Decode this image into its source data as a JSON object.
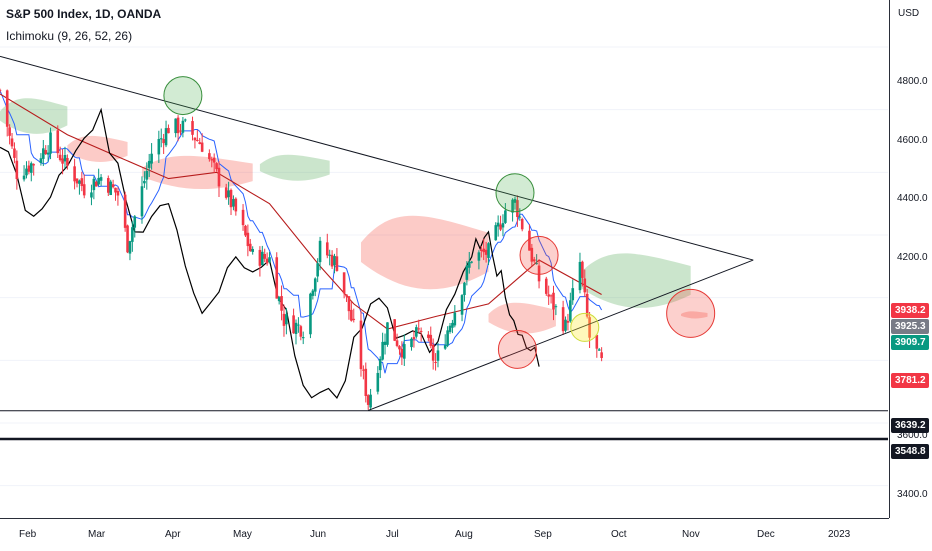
{
  "header": {
    "title": "S&P 500 Index, 1D, OANDA",
    "indicator": "Ichimoku (9, 26, 52, 26)"
  },
  "price_axis": {
    "currency": "USD",
    "ticks": [
      "4800.0",
      "4600.0",
      "4400.0",
      "4200.0",
      "3600.0",
      "3400.0"
    ],
    "labels": [
      {
        "text": "3938.2",
        "color": "#f23645"
      },
      {
        "text": "3925.3",
        "color": "#787b86"
      },
      {
        "text": "3909.7",
        "color": "#089981"
      },
      {
        "text": "3781.2",
        "color": "#f23645"
      },
      {
        "text": "3639.2",
        "color": "#131722"
      },
      {
        "text": "3548.8",
        "color": "#131722"
      }
    ]
  },
  "time_axis": {
    "ticks": [
      "Feb",
      "Mar",
      "Apr",
      "May",
      "Jun",
      "Jul",
      "Aug",
      "Sep",
      "Oct",
      "Nov",
      "Dec",
      "2023"
    ]
  },
  "chart_data": {
    "type": "candlestick",
    "symbol": "S&P 500 Index",
    "interval": "1D",
    "source": "OANDA",
    "y_range": [
      3300,
      4950
    ],
    "x_range": [
      "2022-01-14",
      "2023-01-18"
    ],
    "horizontal_levels": [
      3639.2,
      3548.8
    ],
    "last_close": 3781.2,
    "close_path": [
      [
        "2022-01-14",
        4662
      ],
      [
        "2022-01-21",
        4398
      ],
      [
        "2022-01-28",
        4431
      ],
      [
        "2022-02-04",
        4500
      ],
      [
        "2022-02-11",
        4418
      ],
      [
        "2022-02-18",
        4349
      ],
      [
        "2022-02-25",
        4385
      ],
      [
        "2022-03-04",
        4329
      ],
      [
        "2022-03-08",
        4170
      ],
      [
        "2022-03-18",
        4463
      ],
      [
        "2022-03-25",
        4543
      ],
      [
        "2022-04-01",
        4545
      ],
      [
        "2022-04-08",
        4488
      ],
      [
        "2022-04-14",
        4392
      ],
      [
        "2022-04-22",
        4272
      ],
      [
        "2022-04-29",
        4132
      ],
      [
        "2022-05-06",
        4124
      ],
      [
        "2022-05-12",
        3930
      ],
      [
        "2022-05-20",
        3901
      ],
      [
        "2022-05-27",
        4158
      ],
      [
        "2022-06-03",
        4109
      ],
      [
        "2022-06-10",
        3901
      ],
      [
        "2022-06-16",
        3667
      ],
      [
        "2022-06-24",
        3912
      ],
      [
        "2022-07-01",
        3825
      ],
      [
        "2022-07-08",
        3899
      ],
      [
        "2022-07-14",
        3790
      ],
      [
        "2022-07-22",
        3962
      ],
      [
        "2022-07-29",
        4130
      ],
      [
        "2022-08-05",
        4145
      ],
      [
        "2022-08-12",
        4280
      ],
      [
        "2022-08-16",
        4305
      ],
      [
        "2022-08-26",
        4057
      ],
      [
        "2022-09-06",
        3908
      ],
      [
        "2022-09-12",
        4110
      ],
      [
        "2022-09-16",
        3873
      ],
      [
        "2022-09-21",
        3790
      ]
    ],
    "kijun_path": [
      [
        "2022-01-14",
        4650
      ],
      [
        "2022-02-11",
        4520
      ],
      [
        "2022-03-04",
        4450
      ],
      [
        "2022-03-25",
        4380
      ],
      [
        "2022-04-14",
        4400
      ],
      [
        "2022-05-06",
        4300
      ],
      [
        "2022-05-27",
        4100
      ],
      [
        "2022-06-10",
        3980
      ],
      [
        "2022-06-24",
        3900
      ],
      [
        "2022-07-14",
        3940
      ],
      [
        "2022-08-05",
        3980
      ],
      [
        "2022-08-26",
        4120
      ],
      [
        "2022-09-21",
        4010
      ]
    ],
    "lagging_span_path": [
      [
        "2022-01-14",
        4480
      ],
      [
        "2022-01-28",
        4260
      ],
      [
        "2022-02-11",
        4420
      ],
      [
        "2022-02-25",
        4600
      ],
      [
        "2022-03-11",
        4210
      ],
      [
        "2022-03-25",
        4300
      ],
      [
        "2022-04-08",
        3950
      ],
      [
        "2022-04-22",
        4130
      ],
      [
        "2022-05-06",
        4120
      ],
      [
        "2022-05-20",
        3720
      ],
      [
        "2022-06-03",
        3680
      ],
      [
        "2022-06-17",
        3980
      ],
      [
        "2022-07-01",
        3880
      ],
      [
        "2022-07-15",
        3860
      ],
      [
        "2022-07-29",
        4130
      ],
      [
        "2022-08-05",
        4210
      ],
      [
        "2022-08-12",
        4000
      ],
      [
        "2022-08-19",
        3880
      ],
      [
        "2022-08-26",
        3780
      ]
    ],
    "trendlines": [
      {
        "from": [
          "2022-01-14",
          4770
        ],
        "to": [
          "2022-11-23",
          4120
        ],
        "color": "#131722"
      },
      {
        "from": [
          "2022-06-16",
          3640
        ],
        "to": [
          "2022-11-23",
          4120
        ],
        "color": "#131722"
      }
    ],
    "cloud_segments": [
      {
        "sentiment": "bullish",
        "start": "2022-01-14",
        "end": "2022-02-11",
        "top": 4655,
        "bottom": 4505
      },
      {
        "sentiment": "bearish",
        "start": "2022-02-11",
        "end": "2022-03-08",
        "top": 4530,
        "bottom": 4420
      },
      {
        "sentiment": "bearish",
        "start": "2022-03-14",
        "end": "2022-04-29",
        "top": 4470,
        "bottom": 4330
      },
      {
        "sentiment": "bullish",
        "start": "2022-05-02",
        "end": "2022-05-31",
        "top": 4470,
        "bottom": 4360
      },
      {
        "sentiment": "bearish",
        "start": "2022-06-13",
        "end": "2022-08-05",
        "top": 4300,
        "bottom": 3990
      },
      {
        "sentiment": "bearish",
        "start": "2022-08-05",
        "end": "2022-09-02",
        "top": 4000,
        "bottom": 3870
      },
      {
        "sentiment": "bullish",
        "start": "2022-09-12",
        "end": "2022-10-28",
        "top": 4170,
        "bottom": 3940
      },
      {
        "sentiment": "bearish",
        "start": "2022-10-24",
        "end": "2022-11-04",
        "top": 3960,
        "bottom": 3930
      }
    ],
    "highlight_circles": [
      {
        "center": [
          "2022-03-31",
          4645
        ],
        "color": "green"
      },
      {
        "center": [
          "2022-08-16",
          4335
        ],
        "color": "green"
      },
      {
        "center": [
          "2022-08-26",
          4135
        ],
        "color": "red"
      },
      {
        "center": [
          "2022-08-17",
          3835
        ],
        "color": "red"
      },
      {
        "center": [
          "2022-09-14",
          3905
        ],
        "color": "yellow"
      },
      {
        "center": [
          "2022-10-28",
          3950
        ],
        "color": "red"
      }
    ],
    "colors": {
      "up": "#089981",
      "down": "#f23645",
      "tenkan": "#2962ff",
      "kijun": "#b71c1c",
      "lagging": "#000000"
    }
  }
}
